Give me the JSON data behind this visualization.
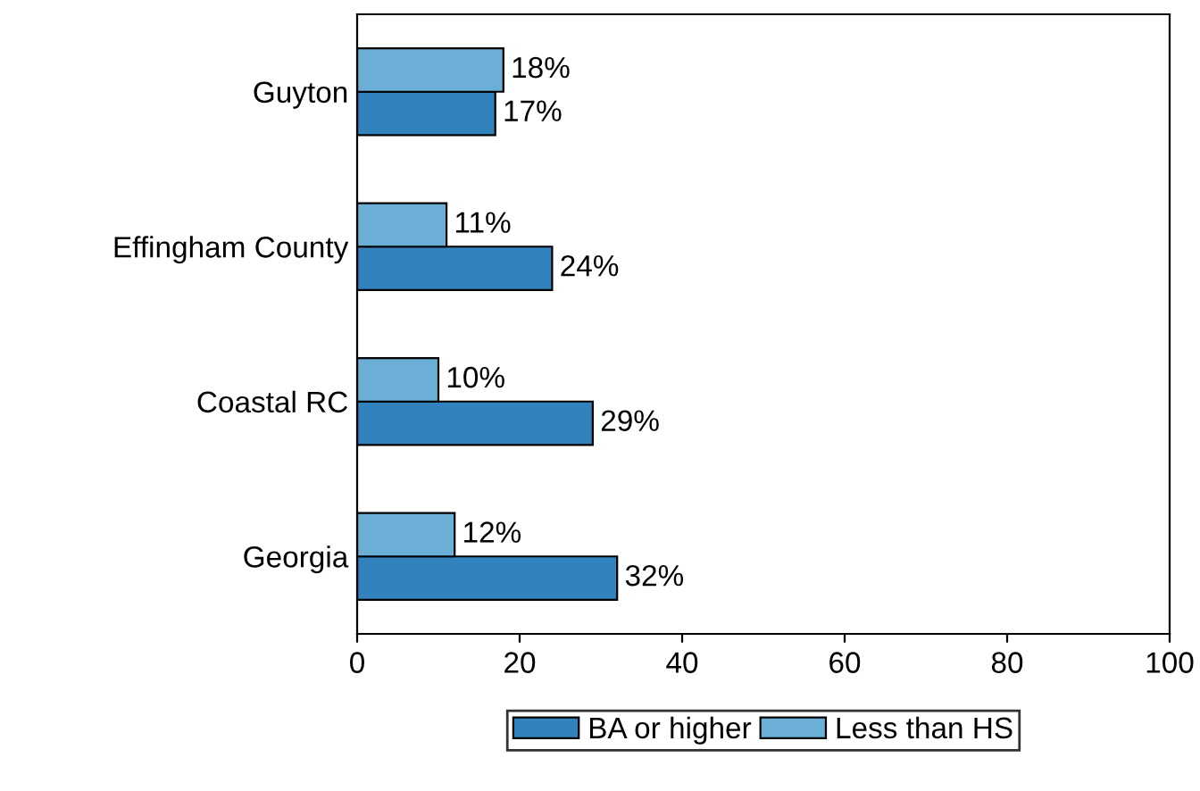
{
  "chart_data": {
    "type": "bar",
    "orientation": "horizontal",
    "categories": [
      "Guyton",
      "Effingham County",
      "Coastal RC",
      "Georgia"
    ],
    "series": [
      {
        "name": "BA or higher",
        "color": "#3182bd",
        "values": [
          17,
          24,
          29,
          32
        ],
        "value_labels": [
          "17%",
          "24%",
          "29%",
          "32%"
        ]
      },
      {
        "name": "Less than HS",
        "color": "#6baed6",
        "values": [
          18,
          11,
          10,
          12
        ],
        "value_labels": [
          "18%",
          "11%",
          "10%",
          "12%"
        ]
      }
    ],
    "xlim": [
      0,
      100
    ],
    "xticks": [
      0,
      20,
      40,
      60,
      80,
      100
    ],
    "grid": false,
    "legend": "bottom"
  }
}
